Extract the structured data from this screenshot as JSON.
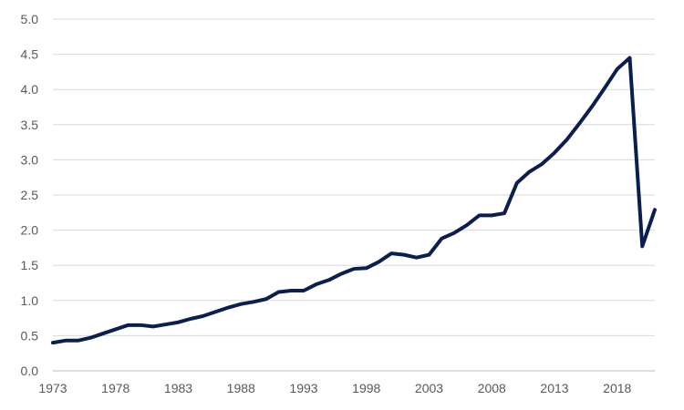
{
  "colors": {
    "line": "#0b1f4f",
    "grid": "#d9d9d9",
    "text": "#595959"
  },
  "chart_data": {
    "type": "line",
    "title": "",
    "xlabel": "",
    "ylabel": "",
    "ylim": [
      0,
      5
    ],
    "xlim": [
      1973,
      2021
    ],
    "grid": true,
    "legend": "none",
    "y_ticks": [
      "0.0",
      "0.5",
      "1.0",
      "1.5",
      "2.0",
      "2.5",
      "3.0",
      "3.5",
      "4.0",
      "4.5",
      "5.0"
    ],
    "x_ticks": [
      "1973",
      "1978",
      "1983",
      "1988",
      "1993",
      "1998",
      "2003",
      "2008",
      "2013",
      "2018"
    ],
    "series": [
      {
        "x": [
          1973,
          1974,
          1975,
          1976,
          1977,
          1978,
          1979,
          1980,
          1981,
          1982,
          1983,
          1984,
          1985,
          1986,
          1987,
          1988,
          1989,
          1990,
          1991,
          1992,
          1993,
          1994,
          1995,
          1996,
          1997,
          1998,
          1999,
          2000,
          2001,
          2002,
          2003,
          2004,
          2005,
          2006,
          2007,
          2008,
          2009,
          2010,
          2011,
          2012,
          2013,
          2014,
          2015,
          2016,
          2017,
          2018,
          2019,
          2020,
          2021
        ],
        "values": [
          0.4,
          0.43,
          0.43,
          0.47,
          0.53,
          0.59,
          0.65,
          0.65,
          0.63,
          0.66,
          0.69,
          0.74,
          0.78,
          0.84,
          0.9,
          0.95,
          0.98,
          1.02,
          1.12,
          1.14,
          1.14,
          1.23,
          1.29,
          1.38,
          1.45,
          1.46,
          1.55,
          1.67,
          1.65,
          1.61,
          1.65,
          1.88,
          1.96,
          2.07,
          2.21,
          2.21,
          2.24,
          2.67,
          2.83,
          2.94,
          3.1,
          3.29,
          3.52,
          3.76,
          4.02,
          4.29,
          4.45,
          1.77,
          2.29
        ]
      }
    ]
  }
}
